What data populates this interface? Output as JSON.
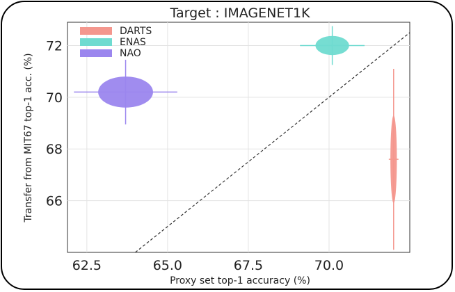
{
  "chart_data": {
    "type": "scatter",
    "title": "Target : IMAGENET1K",
    "xlabel": "Proxy set top-1 accuracy (%)",
    "ylabel": "Transfer from MIT67 top-1 acc. (%)",
    "xlim": [
      61.9,
      72.5
    ],
    "ylim": [
      64.0,
      72.9
    ],
    "xticks": [
      "62.5",
      "65.0",
      "67.5",
      "70.0"
    ],
    "xtick_values": [
      62.5,
      65.0,
      67.5,
      70.0
    ],
    "yticks": [
      "66",
      "68",
      "70",
      "72"
    ],
    "ytick_values": [
      66,
      68,
      70,
      72
    ],
    "grid": true,
    "legend_position": "top-left",
    "reference_line": "y = x",
    "series": [
      {
        "name": "DARTS",
        "color": "#f4978e",
        "x": 72.0,
        "y": 67.6,
        "x_err": 0.15,
        "y_err": 3.5,
        "ellipse_rx": 0.1,
        "ellipse_ry": 1.7
      },
      {
        "name": "ENAS",
        "color": "#6fdbd0",
        "x": 70.1,
        "y": 72.0,
        "x_err": 1.0,
        "y_err": 0.75,
        "ellipse_rx": 0.52,
        "ellipse_ry": 0.37
      },
      {
        "name": "NAO",
        "color": "#9b86ee",
        "x": 63.7,
        "y": 70.2,
        "x_err": 1.6,
        "y_err": 1.25,
        "ellipse_rx": 0.85,
        "ellipse_ry": 0.6
      }
    ]
  }
}
